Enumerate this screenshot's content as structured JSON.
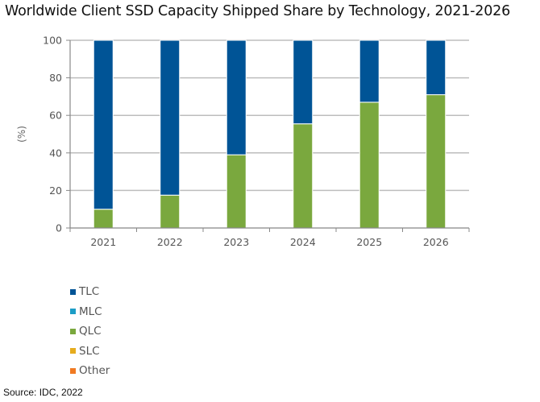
{
  "chart_data": {
    "type": "bar",
    "stacked": true,
    "title": "Worldwide Client SSD Capacity Shipped Share by Technology, 2021-2026",
    "xlabel": "",
    "ylabel": "(%)",
    "ylim": [
      0,
      100
    ],
    "yticks": [
      0,
      20,
      40,
      60,
      80,
      100
    ],
    "ytick_labels": [
      "0",
      "20",
      "40",
      "60",
      "80",
      "100"
    ],
    "grid": true,
    "categories": [
      "2021",
      "2022",
      "2023",
      "2024",
      "2025",
      "2026"
    ],
    "series": [
      {
        "name": "QLC",
        "color": "#7aa83e",
        "values": [
          10,
          17.5,
          39,
          55.5,
          67,
          71
        ]
      },
      {
        "name": "TLC",
        "color": "#005496",
        "values": [
          90,
          82.5,
          61,
          44.5,
          33,
          29
        ]
      }
    ],
    "legend": {
      "placement": "bottom-left",
      "entries": [
        {
          "name": "TLC",
          "color": "#005496"
        },
        {
          "name": "MLC",
          "color": "#1c9dc6"
        },
        {
          "name": "QLC",
          "color": "#7aa83e"
        },
        {
          "name": "SLC",
          "color": "#e6ac1e"
        },
        {
          "name": "Other",
          "color": "#f07a22"
        }
      ]
    },
    "source": "Source: IDC, 2022"
  }
}
